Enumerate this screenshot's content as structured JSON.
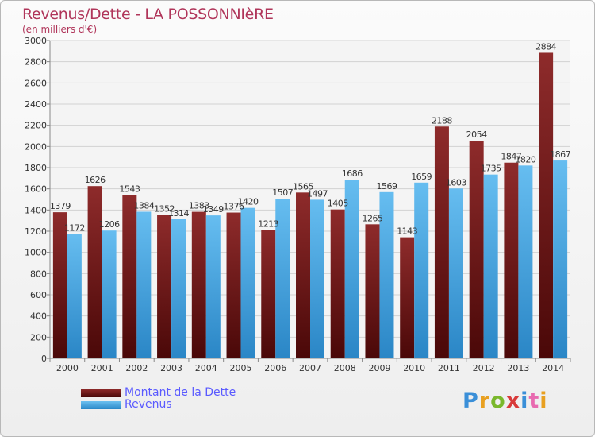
{
  "title": "Revenus/Dette - LA POSSONNIèRE",
  "subtitle": "(en milliers d'€)",
  "legend": {
    "debt_label": "Montant de la Dette",
    "revenue_label": "Revenus"
  },
  "logo": {
    "text": "Proxiti"
  },
  "colors": {
    "debt": "#7a1e1e",
    "revenue": "#45a3e0",
    "title": "#b0355a",
    "legend_text": "#5a5aff"
  },
  "chart_data": {
    "type": "bar",
    "title": "Revenus/Dette - LA POSSONNIèRE",
    "ylabel": "(en milliers d'€)",
    "xlabel": "",
    "categories": [
      "2000",
      "2001",
      "2002",
      "2003",
      "2004",
      "2005",
      "2006",
      "2007",
      "2008",
      "2009",
      "2010",
      "2011",
      "2012",
      "2013",
      "2014"
    ],
    "series": [
      {
        "name": "Montant de la Dette",
        "values": [
          1379,
          1626,
          1543,
          1352,
          1383,
          1376,
          1213,
          1565,
          1405,
          1265,
          1143,
          2188,
          2054,
          1847,
          2884
        ],
        "labels": [
          "1379",
          "1626",
          "1543",
          "1352",
          "1383",
          "1376",
          "1213",
          "1565",
          "1405",
          "1265",
          "1143",
          "2188",
          "2054",
          "1847",
          "2884"
        ]
      },
      {
        "name": "Revenus",
        "values": [
          1172,
          1206,
          1384,
          1314,
          1349,
          1420,
          1507,
          1497,
          1686,
          1569,
          1659,
          1603,
          1735,
          1820,
          1867
        ],
        "labels": [
          "1172",
          "1206",
          "1384",
          "1314",
          "1349",
          "1420",
          "1507",
          "1497",
          "1686",
          "1569",
          "1659",
          "1603",
          "1735",
          "1820",
          "1867"
        ]
      }
    ],
    "yticks": [
      0,
      200,
      400,
      600,
      800,
      1000,
      1200,
      1400,
      1600,
      1800,
      2000,
      2200,
      2400,
      2600,
      2800,
      3000
    ],
    "ylim": [
      0,
      3000
    ],
    "grid": true,
    "legend_position": "bottom-left"
  }
}
